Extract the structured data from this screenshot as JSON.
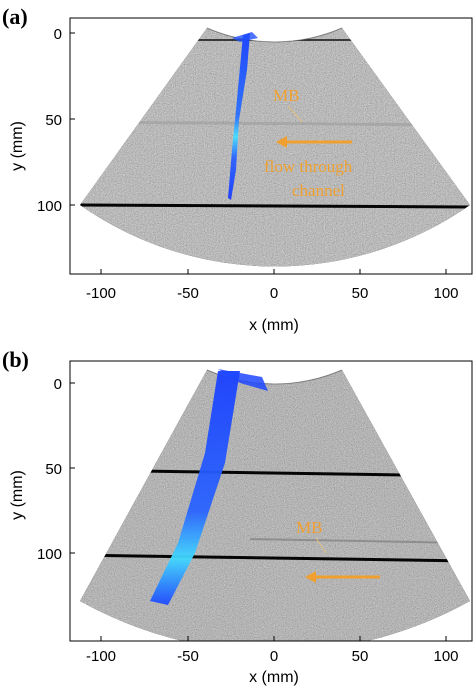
{
  "figure": {
    "panels": [
      {
        "label": "(a)",
        "xlabel": "x (mm)",
        "ylabel": "y (mm)",
        "xticks": [
          "-100",
          "-50",
          "0",
          "50",
          "100"
        ],
        "yticks": [
          "0",
          "50",
          "100"
        ],
        "annotations": {
          "mb": "MB",
          "flow_line1": "flow through",
          "flow_line2": "channel"
        }
      },
      {
        "label": "(b)",
        "xlabel": "x (mm)",
        "ylabel": "y (mm)",
        "xticks": [
          "-100",
          "-50",
          "0",
          "50",
          "100"
        ],
        "yticks": [
          "0",
          "50",
          "100"
        ],
        "annotations": {
          "mb": "MB"
        }
      }
    ],
    "colors": {
      "annotation": "#f0a030",
      "background": "#1a1a1a",
      "track_blue": "#2a5cff",
      "track_cyan": "#40e0ff"
    }
  },
  "chart_data": [
    {
      "type": "heatmap",
      "title": "",
      "xlabel": "x (mm)",
      "ylabel": "y (mm)",
      "xlim": [
        -115,
        115
      ],
      "ylim": [
        140,
        -8
      ],
      "xticks": [
        -100,
        -50,
        0,
        50,
        100
      ],
      "yticks": [
        0,
        50,
        100
      ],
      "grid": false
    },
    {
      "type": "heatmap",
      "title": "",
      "xlabel": "x (mm)",
      "ylabel": "y (mm)",
      "xlim": [
        -115,
        115
      ],
      "ylim": [
        140,
        -8
      ],
      "xticks": [
        -100,
        -50,
        0,
        50,
        100
      ],
      "yticks": [
        0,
        50,
        100
      ],
      "grid": false
    }
  ]
}
